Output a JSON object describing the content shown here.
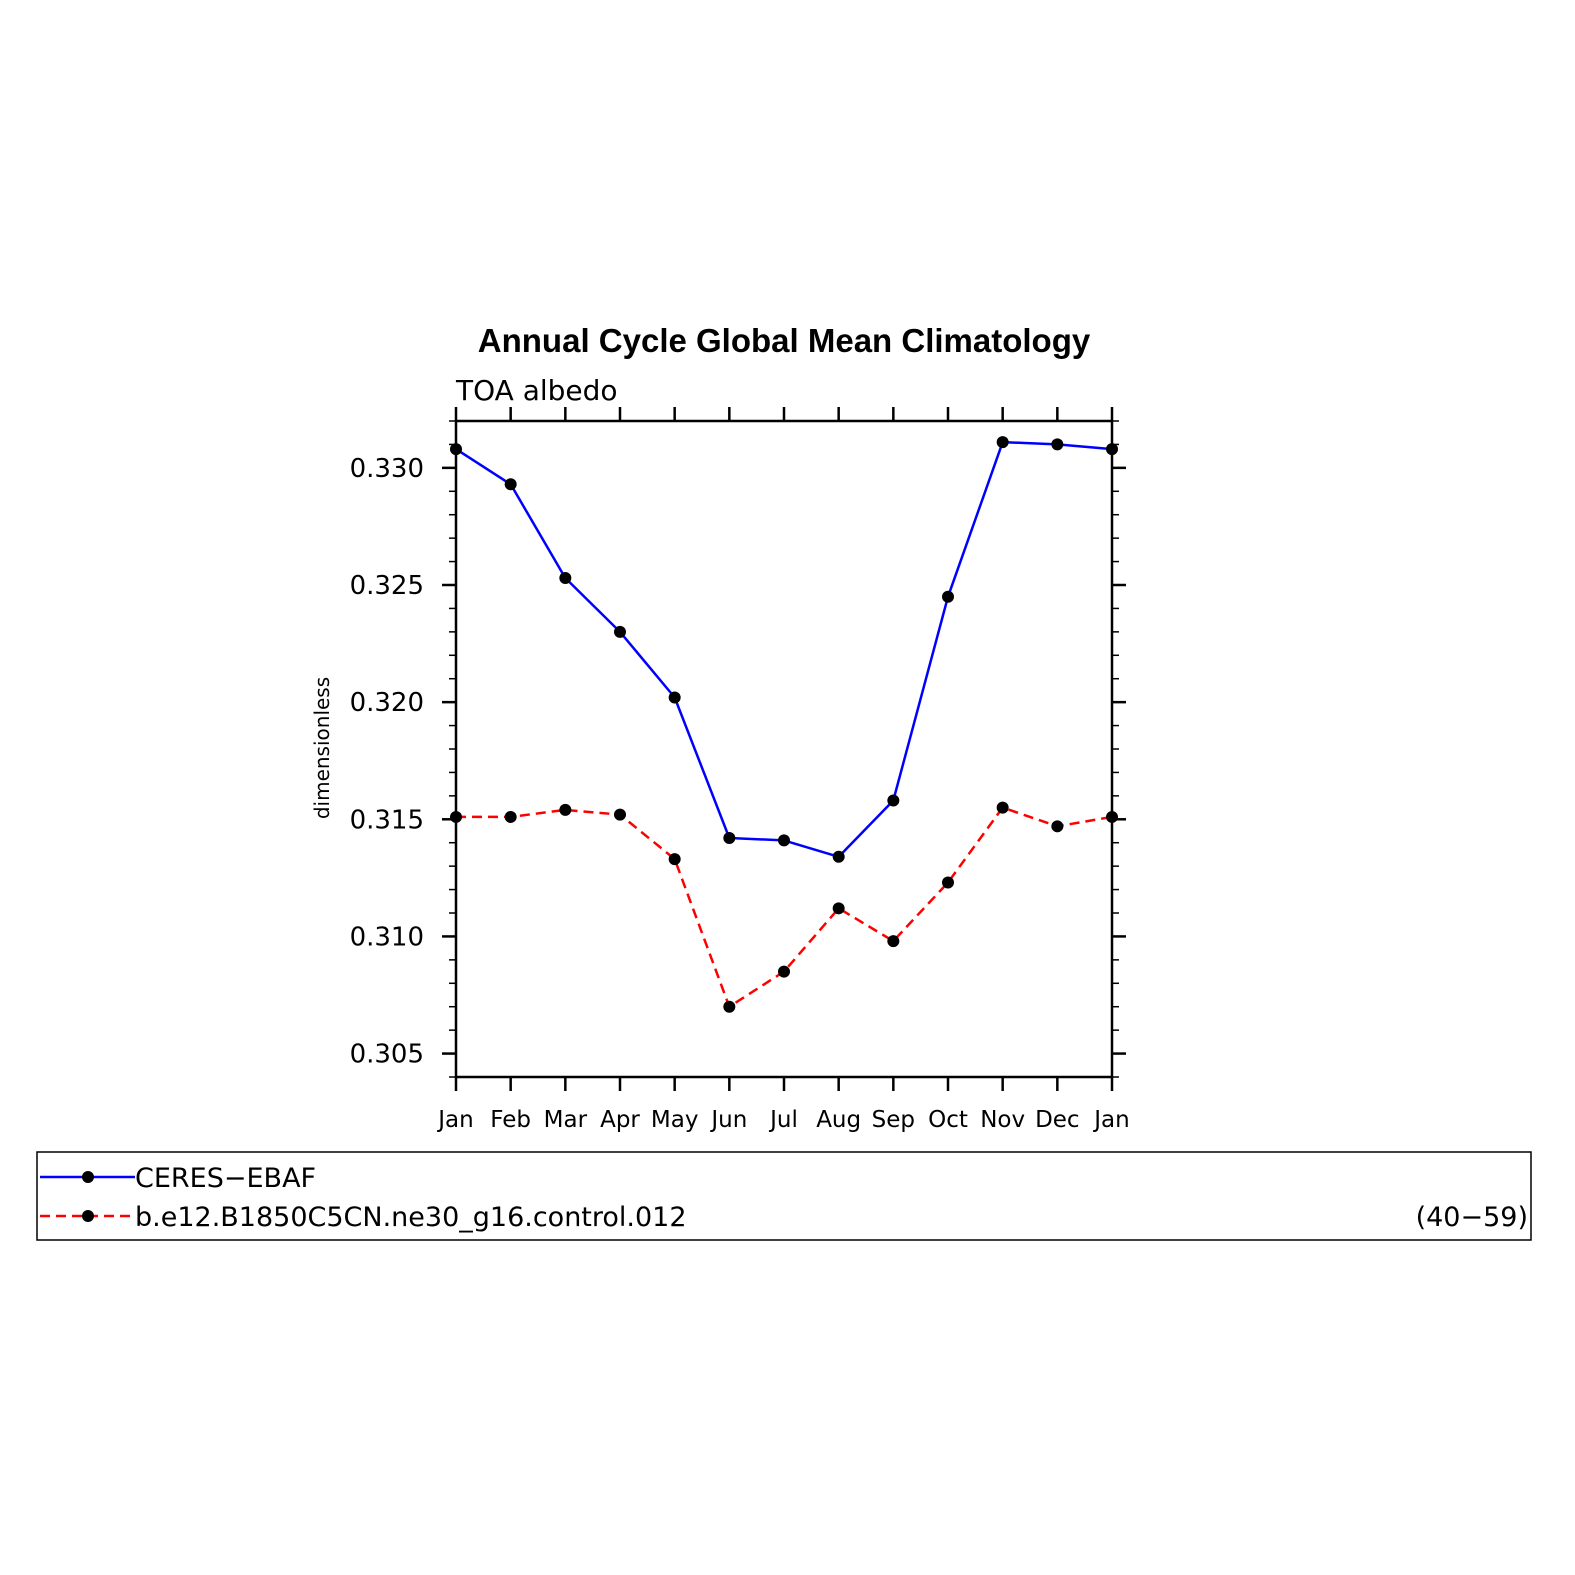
{
  "chart_data": {
    "type": "line",
    "title": "Annual Cycle Global Mean Climatology",
    "subtitle": "TOA albedo",
    "ylabel": "dimensionless",
    "xlabel": "",
    "categories": [
      "Jan",
      "Feb",
      "Mar",
      "Apr",
      "May",
      "Jun",
      "Jul",
      "Aug",
      "Sep",
      "Oct",
      "Nov",
      "Dec",
      "Jan"
    ],
    "ylim": [
      0.304,
      0.332
    ],
    "yticks": [
      0.305,
      0.31,
      0.315,
      0.32,
      0.325,
      0.33
    ],
    "ytick_labels": [
      "0.305",
      "0.310",
      "0.315",
      "0.320",
      "0.325",
      "0.330"
    ],
    "grid": false,
    "legend_position": "bottom",
    "series": [
      {
        "name": "CERES−EBAF",
        "color": "#0000ff",
        "line_style": "solid",
        "values": [
          0.3308,
          0.3293,
          0.3253,
          0.323,
          0.3202,
          0.3142,
          0.3141,
          0.3134,
          0.3158,
          0.3245,
          0.3311,
          0.331,
          0.3308
        ]
      },
      {
        "name": "b.e12.B1850C5CN.ne30_g16.control.012",
        "annotation": "(40−59)",
        "color": "#ff0000",
        "line_style": "dashed",
        "values": [
          0.3151,
          0.3151,
          0.3154,
          0.3152,
          0.3133,
          0.307,
          0.3085,
          0.3112,
          0.3098,
          0.3123,
          0.3155,
          0.3147,
          0.3151
        ]
      }
    ]
  }
}
